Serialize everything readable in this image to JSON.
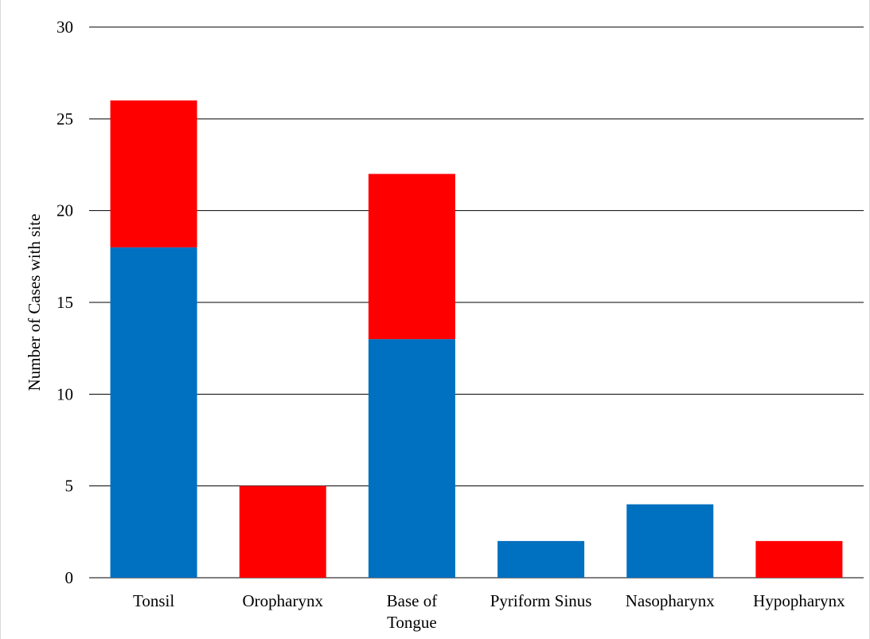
{
  "chart_data": {
    "type": "bar",
    "stacked": true,
    "categories": [
      [
        "Tonsil"
      ],
      [
        "Oropharynx"
      ],
      [
        "Base of",
        "Tongue"
      ],
      [
        "Pyriform Sinus"
      ],
      [
        "Nasopharynx"
      ],
      [
        "Hypopharynx"
      ]
    ],
    "series": [
      {
        "color": "#0070C0",
        "values": [
          18,
          0,
          13,
          2,
          4,
          0
        ]
      },
      {
        "color": "#FF0000",
        "values": [
          8,
          5,
          9,
          0,
          0,
          2
        ]
      }
    ],
    "ylabel": "Number of Cases with site",
    "xlabel": "",
    "ylim": [
      0,
      30
    ],
    "yticks": [
      0,
      5,
      10,
      15,
      20,
      25,
      30
    ],
    "grid": true,
    "legend": "none"
  }
}
